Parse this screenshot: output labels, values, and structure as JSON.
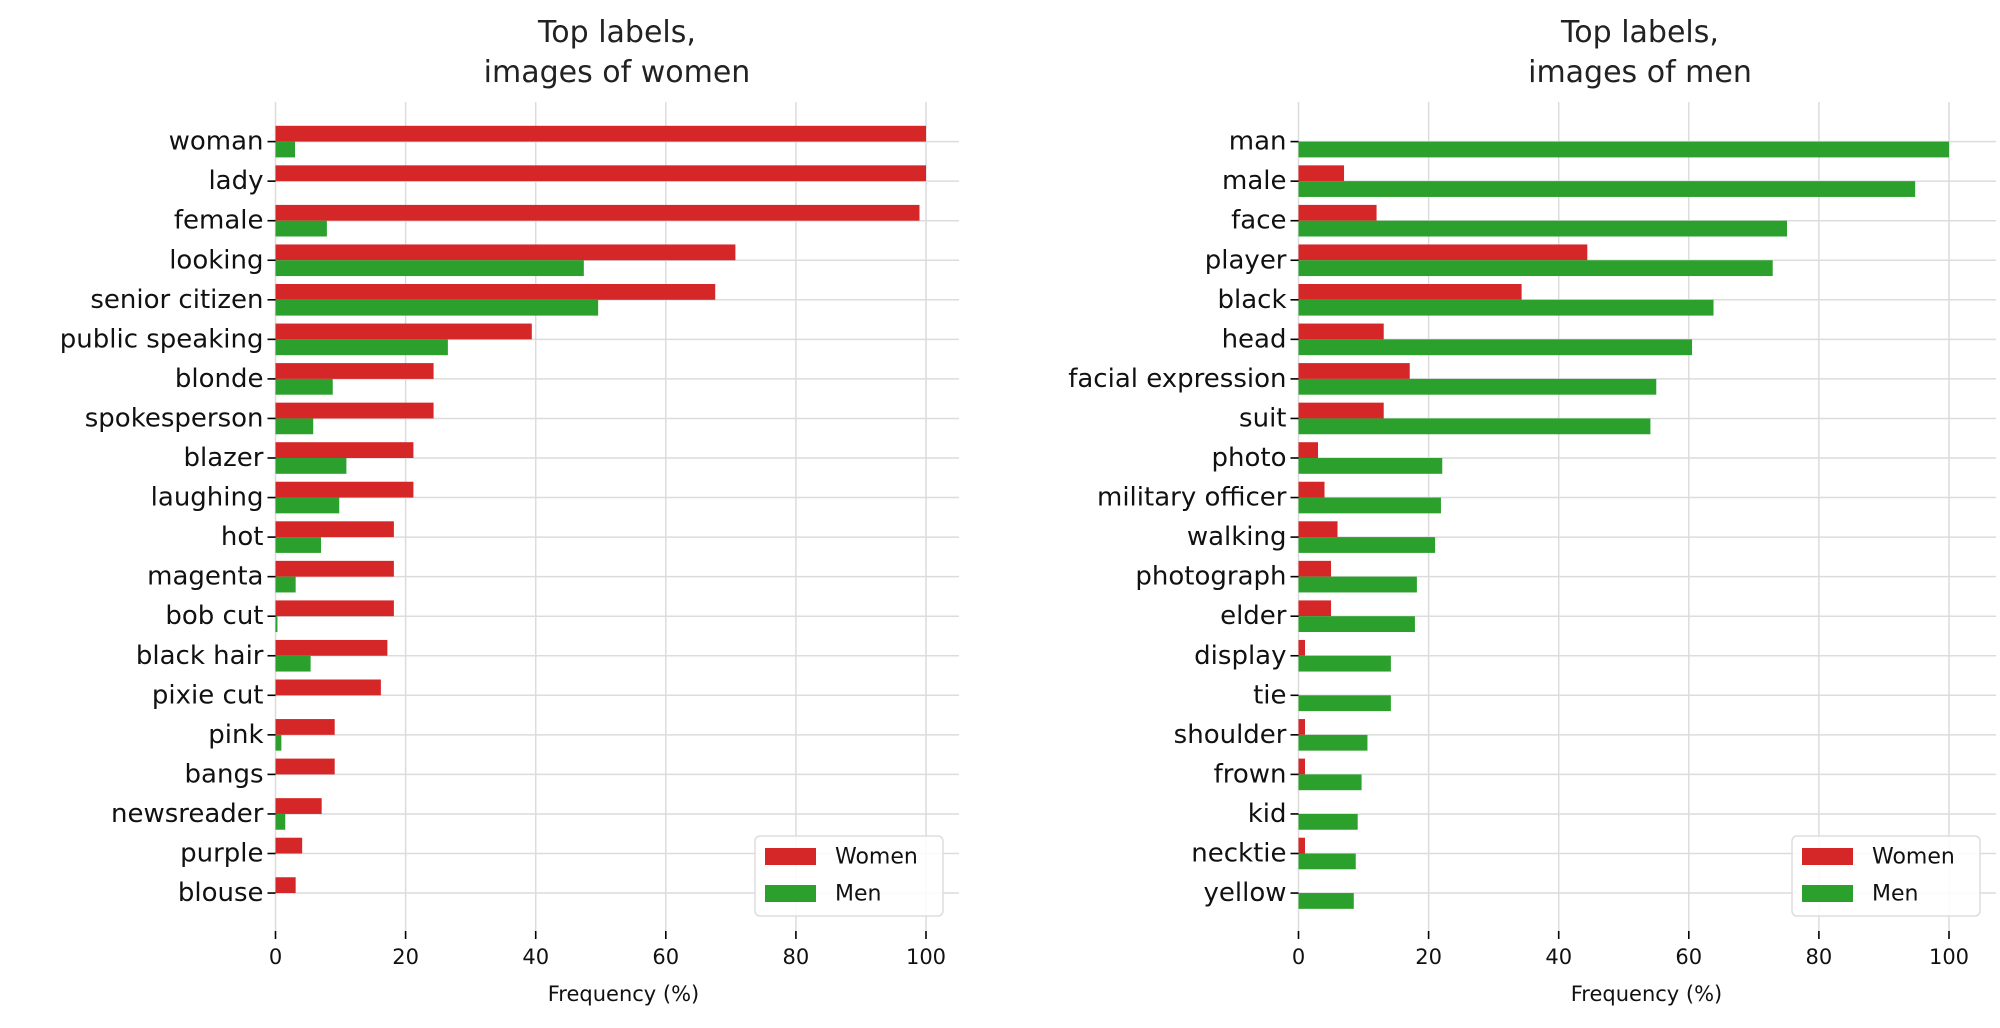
{
  "colors": {
    "women": "#d62728",
    "men": "#2ca02c",
    "grid": "#dcdcdc"
  },
  "chart_data": [
    {
      "type": "bar",
      "orientation": "horizontal",
      "title": [
        "Top labels,",
        "images of women"
      ],
      "xlabel": "Frequency (%)",
      "xlim": [
        0,
        107
      ],
      "xticks": [
        0,
        20,
        40,
        60,
        80,
        100
      ],
      "grid": true,
      "legend": "bottom-right",
      "categories": [
        "woman",
        "lady",
        "female",
        "looking",
        "senior citizen",
        "public speaking",
        "blonde",
        "spokesperson",
        "blazer",
        "laughing",
        "hot",
        "magenta",
        "bob cut",
        "black hair",
        "pixie cut",
        "pink",
        "bangs",
        "newsreader",
        "purple",
        "blouse"
      ],
      "series": [
        {
          "name": "Women",
          "values": [
            100,
            100,
            99.0,
            70.7,
            67.6,
            39.4,
            24.3,
            24.3,
            21.2,
            21.2,
            18.2,
            18.2,
            18.2,
            17.2,
            16.2,
            9.1,
            9.1,
            7.1,
            4.1,
            3.1
          ]
        },
        {
          "name": "Men",
          "values": [
            3.0,
            0,
            7.9,
            47.4,
            49.6,
            26.5,
            8.8,
            5.8,
            10.9,
            9.8,
            7.0,
            3.1,
            0.3,
            5.4,
            0,
            0.9,
            0,
            1.5,
            0,
            0
          ]
        }
      ]
    },
    {
      "type": "bar",
      "orientation": "horizontal",
      "title": [
        "Top labels,",
        "images of men"
      ],
      "xlabel": "Frequency (%)",
      "xlim": [
        0,
        107
      ],
      "xticks": [
        0,
        20,
        40,
        60,
        80,
        100
      ],
      "grid": true,
      "legend": "bottom-right",
      "categories": [
        "man",
        "male",
        "face",
        "player",
        "black",
        "head",
        "facial expression",
        "suit",
        "photo",
        "military officer",
        "walking",
        "photograph",
        "elder",
        "display",
        "tie",
        "shoulder",
        "frown",
        "kid",
        "necktie",
        "yellow"
      ],
      "series": [
        {
          "name": "Women",
          "values": [
            0,
            7.0,
            12.0,
            44.4,
            34.3,
            13.1,
            17.1,
            13.1,
            3.0,
            4.0,
            6.0,
            5.0,
            5.0,
            1.0,
            0,
            1.0,
            1.0,
            0,
            1.0,
            0
          ]
        },
        {
          "name": "Men",
          "values": [
            100,
            94.8,
            75.1,
            72.9,
            63.8,
            60.5,
            55.0,
            54.1,
            22.1,
            21.9,
            21.0,
            18.2,
            17.9,
            14.2,
            14.2,
            10.6,
            9.7,
            9.1,
            8.8,
            8.5
          ]
        }
      ]
    }
  ]
}
